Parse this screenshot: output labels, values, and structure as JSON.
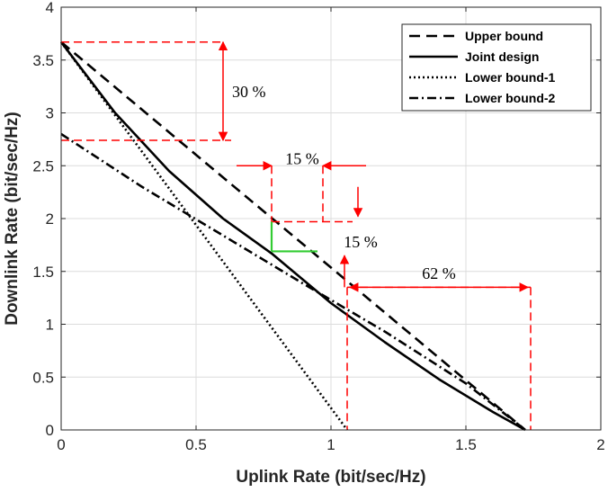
{
  "chart_data": {
    "type": "line",
    "title": "",
    "xlabel": "Uplink Rate (bit/sec/Hz)",
    "ylabel": "Downlink Rate (bit/sec/Hz)",
    "xlim": [
      0,
      2
    ],
    "ylim": [
      0,
      4
    ],
    "x_ticks": [
      "0",
      "0.5",
      "1",
      "1.5",
      "2"
    ],
    "y_ticks": [
      "0",
      "0.5",
      "1",
      "1.5",
      "2",
      "2.5",
      "3",
      "3.5",
      "4"
    ],
    "grid": true,
    "legend_position": "top-right",
    "series": [
      {
        "name": "Upper bound",
        "style": "dashed",
        "color": "#000000",
        "x": [
          0,
          1.72
        ],
        "y": [
          3.67,
          0
        ]
      },
      {
        "name": "Joint design",
        "style": "solid",
        "color": "#000000",
        "x": [
          0,
          0.2,
          0.4,
          0.6,
          0.78,
          1.0,
          1.2,
          1.4,
          1.6,
          1.72
        ],
        "y": [
          3.67,
          3.0,
          2.45,
          2.0,
          1.67,
          1.2,
          0.83,
          0.48,
          0.17,
          0
        ]
      },
      {
        "name": "Lower bound-1",
        "style": "dotted",
        "color": "#000000",
        "x": [
          0,
          1.06
        ],
        "y": [
          3.67,
          0
        ]
      },
      {
        "name": "Lower bound-2",
        "style": "dashdot",
        "color": "#000000",
        "x": [
          0,
          0.3,
          0.6,
          0.9,
          1.2,
          1.5,
          1.72
        ],
        "y": [
          2.8,
          2.3,
          1.84,
          1.38,
          0.93,
          0.44,
          0
        ]
      }
    ],
    "annotations": [
      {
        "text": "30 %"
      },
      {
        "text": "15 %"
      },
      {
        "text": "15 %"
      },
      {
        "text": "62 %"
      }
    ]
  }
}
